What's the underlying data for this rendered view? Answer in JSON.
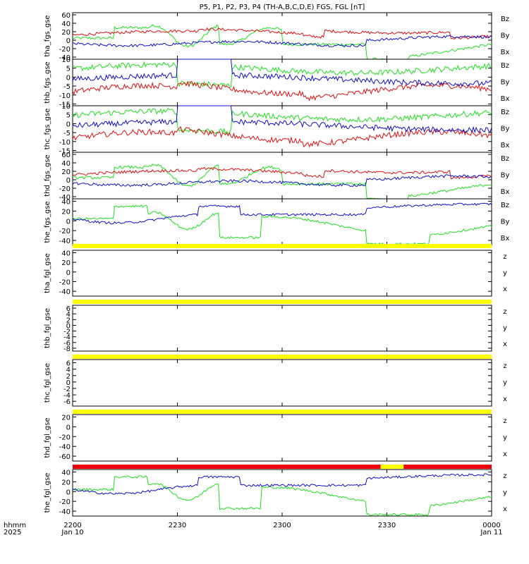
{
  "title": "P5, P1, P2, P3, P4 (TH-A,B,C,D,E) FGS, FGL [nT]",
  "colors": {
    "x": "#1010c8",
    "y": "#20e020",
    "z": "#e01010",
    "flag_yellow": "#ffff00",
    "flag_red": "#ee0000"
  },
  "chart_data": [
    {
      "type": "line",
      "ylabel": "tha_fgs_gse",
      "yticks": [
        "60",
        "40",
        "20",
        "0",
        "-20",
        "-40"
      ],
      "ylim": [
        -45,
        65
      ],
      "legend": [
        "Bz",
        "By",
        "Bx"
      ]
    },
    {
      "type": "line",
      "ylabel": "thb_fgs_gse",
      "yticks": [
        "10",
        "5",
        "0",
        "-5",
        "-10",
        "-15"
      ],
      "ylim": [
        -16,
        10
      ],
      "legend": [
        "Bz",
        "By",
        "Bx"
      ]
    },
    {
      "type": "line",
      "ylabel": "thc_fgs_gse",
      "yticks": [
        "10",
        "5",
        "0",
        "-5",
        "-10",
        "-15"
      ],
      "ylim": [
        -16,
        10
      ],
      "legend": [
        "Bz",
        "By",
        "Bx"
      ]
    },
    {
      "type": "line",
      "ylabel": "thd_fgs_gse",
      "yticks": [
        "60",
        "40",
        "20",
        "0",
        "-20",
        "-40"
      ],
      "ylim": [
        -45,
        65
      ],
      "legend": [
        "Bz",
        "By",
        "Bx"
      ]
    },
    {
      "type": "line",
      "ylabel": "the_fgs_gse",
      "yticks": [
        "40",
        "20",
        "0",
        "-20",
        "-40"
      ],
      "ylim": [
        -50,
        45
      ],
      "legend": [
        "Bz",
        "By",
        "Bx"
      ]
    },
    {
      "type": "line",
      "ylabel": "tha_fgl_gse",
      "yticks": [
        "40",
        "20",
        "0",
        "-20",
        "-40"
      ],
      "ylim": [
        -50,
        45
      ],
      "legend": [
        "z",
        "y",
        "x"
      ]
    },
    {
      "type": "line",
      "ylabel": "thb_fgl_gse",
      "yticks": [
        "6",
        "4",
        "2",
        "0",
        "-2",
        "-4",
        "-6",
        "-8"
      ],
      "ylim": [
        -9,
        7
      ],
      "legend": [
        "z",
        "y",
        "x"
      ]
    },
    {
      "type": "line",
      "ylabel": "thc_fgl_gse",
      "yticks": [
        "6",
        "4",
        "2",
        "0",
        "-2",
        "-4",
        "-6"
      ],
      "ylim": [
        -7.5,
        7
      ],
      "legend": [
        "z",
        "y",
        "x"
      ]
    },
    {
      "type": "line",
      "ylabel": "thd_fgl_gse",
      "yticks": [
        "20",
        "0",
        "-20",
        "-40",
        "-60"
      ],
      "ylim": [
        -70,
        25
      ],
      "legend": [
        "z",
        "y",
        "x"
      ]
    },
    {
      "type": "line",
      "ylabel": "the_fgl_gse",
      "yticks": [
        "40",
        "20",
        "0",
        "-20",
        "-40"
      ],
      "ylim": [
        -50,
        45
      ],
      "legend": [
        "z",
        "y",
        "x"
      ]
    }
  ],
  "xaxis": {
    "left_label_1": "hhmm",
    "left_label_2": "2025",
    "ticks": [
      "2200",
      "2230",
      "2300",
      "2330",
      "0000"
    ],
    "dates": [
      "Jan 10",
      "",
      "",
      "",
      "Jan 11"
    ]
  }
}
